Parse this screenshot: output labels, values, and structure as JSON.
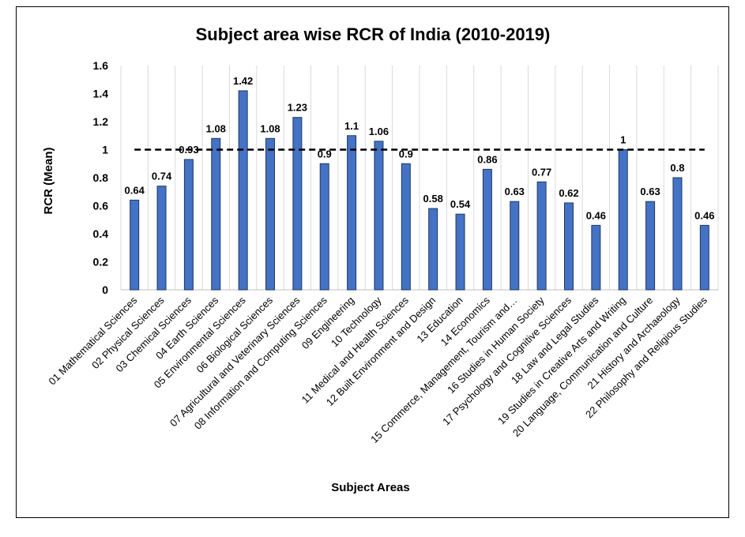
{
  "chart_data": {
    "type": "bar",
    "title": "Subject area wise RCR of India (2010-2019)",
    "xlabel": "Subject Areas",
    "ylabel": "RCR (Mean)",
    "ylim": [
      0,
      1.6
    ],
    "yticks": [
      "0",
      "0.2",
      "0.4",
      "0.6",
      "0.8",
      "1",
      "1.2",
      "1.4",
      "1.6"
    ],
    "grid": "vertical",
    "reference_line": {
      "value": 1,
      "style": "dashed"
    },
    "bar_color": "#4472C4",
    "categories": [
      "01 Mathematical Sciences",
      "02 Physical Sciences",
      "03 Chemical Sciences",
      "04 Earth Sciences",
      "05 Environmental Sciences",
      "06 Biological Sciences",
      "07 Agricultural and Veterinary Sciences",
      "08 Information and Computing Sciences",
      "09 Engineering",
      "10 Technology",
      "11 Medical and Health Sciences",
      "12 Built Environment and Design",
      "13 Education",
      "14 Economics",
      "15 Commerce, Management, Tourism and…",
      "16 Studies in Human Society",
      "17 Psychology and Cognitive Sciences",
      "18 Law and Legal Studies",
      "19 Studies in Creative Arts and Writing",
      "20 Language, Communication and Culture",
      "21 History and Archaeology",
      "22 Philosophy and Religious Studies"
    ],
    "values": [
      0.64,
      0.74,
      0.93,
      1.08,
      1.42,
      1.08,
      1.23,
      0.9,
      1.1,
      1.06,
      0.9,
      0.58,
      0.54,
      0.86,
      0.63,
      0.77,
      0.62,
      0.46,
      1,
      0.63,
      0.8,
      0.46
    ],
    "data_labels": [
      "0.64",
      "0.74",
      "0.93",
      "1.08",
      "1.42",
      "1.08",
      "1.23",
      "0.9",
      "1.1",
      "1.06",
      "0.9",
      "0.58",
      "0.54",
      "0.86",
      "0.63",
      "0.77",
      "0.62",
      "0.46",
      "1",
      "0.63",
      "0.8",
      "0.46"
    ]
  }
}
